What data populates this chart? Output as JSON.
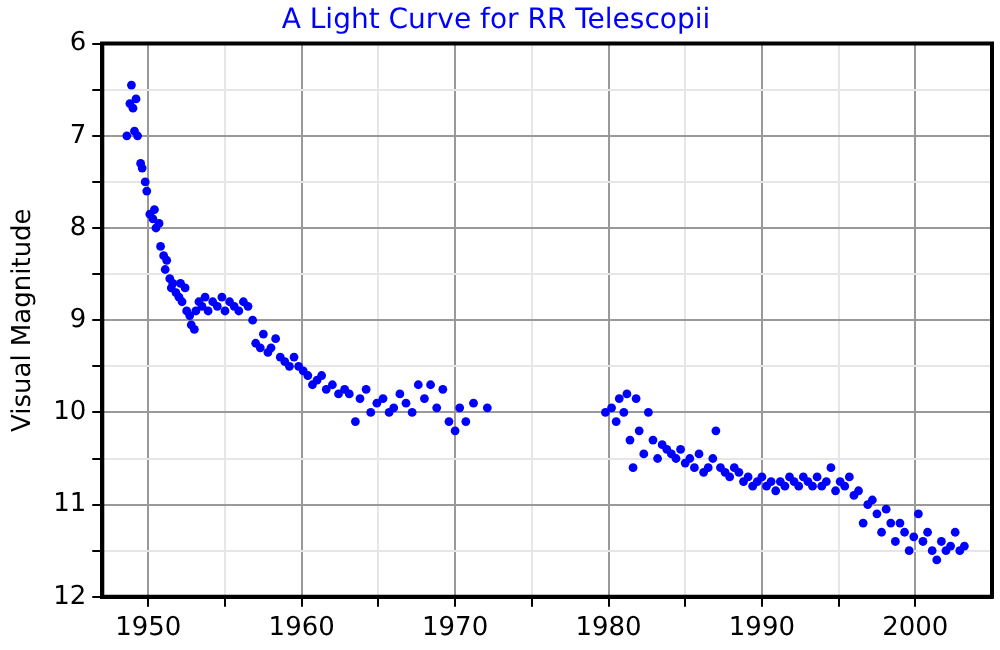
{
  "chart_data": {
    "type": "scatter",
    "title": "A Light Curve for RR Telescopii",
    "ylabel": "Visual Magnitude",
    "x": [
      1948.6,
      1948.8,
      1948.9,
      1949.0,
      1949.1,
      1949.2,
      1949.3,
      1949.5,
      1949.6,
      1949.8,
      1949.9,
      1950.1,
      1950.3,
      1950.4,
      1950.5,
      1950.7,
      1950.8,
      1951.0,
      1951.1,
      1951.2,
      1951.4,
      1951.5,
      1951.6,
      1951.8,
      1952.0,
      1952.1,
      1952.2,
      1952.4,
      1952.5,
      1952.7,
      1952.8,
      1953.0,
      1953.1,
      1953.3,
      1953.5,
      1953.7,
      1953.9,
      1954.2,
      1954.5,
      1954.8,
      1955.0,
      1955.3,
      1955.6,
      1955.9,
      1956.2,
      1956.5,
      1956.8,
      1957.0,
      1957.3,
      1957.5,
      1957.8,
      1958.0,
      1958.3,
      1958.6,
      1958.9,
      1959.2,
      1959.5,
      1959.8,
      1960.1,
      1960.4,
      1960.7,
      1961.0,
      1961.3,
      1961.6,
      1962.0,
      1962.4,
      1962.8,
      1963.1,
      1963.5,
      1963.8,
      1964.2,
      1964.5,
      1964.9,
      1965.3,
      1965.7,
      1966.0,
      1966.4,
      1966.8,
      1967.2,
      1967.6,
      1968.0,
      1968.4,
      1968.8,
      1969.2,
      1969.6,
      1970.0,
      1970.3,
      1970.7,
      1971.2,
      1972.1,
      1979.8,
      1980.2,
      1980.5,
      1980.7,
      1981.0,
      1981.2,
      1981.4,
      1981.6,
      1981.8,
      1982.0,
      1982.3,
      1982.6,
      1982.9,
      1983.2,
      1983.5,
      1983.8,
      1984.1,
      1984.4,
      1984.7,
      1985.0,
      1985.3,
      1985.6,
      1985.9,
      1986.2,
      1986.5,
      1986.8,
      1987.0,
      1987.3,
      1987.6,
      1987.9,
      1988.2,
      1988.5,
      1988.8,
      1989.1,
      1989.4,
      1989.7,
      1990.0,
      1990.3,
      1990.6,
      1990.9,
      1991.2,
      1991.5,
      1991.8,
      1992.1,
      1992.4,
      1992.7,
      1993.0,
      1993.3,
      1993.6,
      1993.9,
      1994.2,
      1994.5,
      1994.8,
      1995.1,
      1995.4,
      1995.7,
      1996.0,
      1996.3,
      1996.6,
      1996.9,
      1997.2,
      1997.5,
      1997.8,
      1998.1,
      1998.4,
      1998.7,
      1999.0,
      1999.3,
      1999.6,
      1999.9,
      2000.2,
      2000.5,
      2000.8,
      2001.1,
      2001.4,
      2001.7,
      2002.0,
      2002.3,
      2002.6,
      2002.9,
      2003.2
    ],
    "values": [
      7.0,
      6.65,
      6.45,
      6.7,
      6.95,
      6.6,
      7.0,
      7.3,
      7.35,
      7.5,
      7.6,
      7.85,
      7.9,
      7.8,
      8.0,
      7.95,
      8.2,
      8.3,
      8.45,
      8.35,
      8.55,
      8.65,
      8.6,
      8.7,
      8.75,
      8.6,
      8.8,
      8.65,
      8.9,
      8.95,
      9.05,
      9.1,
      8.9,
      8.8,
      8.85,
      8.75,
      8.9,
      8.8,
      8.85,
      8.75,
      8.9,
      8.8,
      8.85,
      8.9,
      8.8,
      8.85,
      9.0,
      9.25,
      9.3,
      9.15,
      9.35,
      9.3,
      9.2,
      9.4,
      9.45,
      9.5,
      9.4,
      9.5,
      9.55,
      9.6,
      9.7,
      9.65,
      9.6,
      9.75,
      9.7,
      9.8,
      9.75,
      9.8,
      10.1,
      9.85,
      9.75,
      10.0,
      9.9,
      9.85,
      10.0,
      9.95,
      9.8,
      9.9,
      10.0,
      9.7,
      9.85,
      9.7,
      9.95,
      9.75,
      10.1,
      10.2,
      9.95,
      10.1,
      9.9,
      9.95,
      10.0,
      9.95,
      10.1,
      9.85,
      10.0,
      9.8,
      10.3,
      10.6,
      9.85,
      10.2,
      10.45,
      10.0,
      10.3,
      10.5,
      10.35,
      10.4,
      10.45,
      10.5,
      10.4,
      10.55,
      10.5,
      10.6,
      10.45,
      10.65,
      10.6,
      10.5,
      10.2,
      10.6,
      10.65,
      10.7,
      10.6,
      10.65,
      10.75,
      10.7,
      10.8,
      10.75,
      10.7,
      10.8,
      10.75,
      10.85,
      10.75,
      10.8,
      10.7,
      10.75,
      10.8,
      10.7,
      10.75,
      10.8,
      10.7,
      10.8,
      10.75,
      10.6,
      10.85,
      10.75,
      10.8,
      10.7,
      10.9,
      10.85,
      11.2,
      11.0,
      10.95,
      11.1,
      11.3,
      11.05,
      11.2,
      11.4,
      11.2,
      11.3,
      11.5,
      11.35,
      11.1,
      11.4,
      11.3,
      11.5,
      11.6,
      11.4,
      11.5,
      11.45,
      11.3,
      11.5,
      11.45
    ],
    "color": "#0000ff",
    "marker": "circle",
    "grid": true,
    "xlim": [
      1947,
      2005
    ],
    "xticks": [
      1950,
      {
        "value": 1955,
        "label": null
      },
      1960,
      {
        "value": 1965,
        "label": null
      },
      1970,
      {
        "value": 1975,
        "label": null
      },
      1980,
      {
        "value": 1985,
        "label": null
      },
      1990,
      {
        "value": 1995,
        "label": null
      },
      2000
    ],
    "ylim": [
      12,
      6
    ],
    "yticks": [
      6,
      {
        "value": 6.5,
        "label": null
      },
      7,
      {
        "value": 7.5,
        "label": null
      },
      8,
      {
        "value": 8.5,
        "label": null
      },
      9,
      {
        "value": 9.5,
        "label": null
      },
      10,
      {
        "value": 10.5,
        "label": null
      },
      11,
      {
        "value": 11.5,
        "label": null
      },
      12
    ]
  }
}
